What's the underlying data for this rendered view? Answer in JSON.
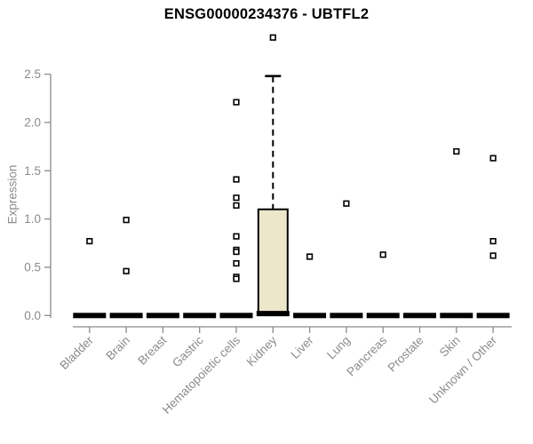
{
  "colors": {
    "box_fill": "#ece7cb",
    "box_stroke": "#000000",
    "axis": "#8b8b8b",
    "axis_text": "#8b8b8b",
    "title_text": "#000000",
    "outlier_fill": "#ffffff"
  },
  "chart_data": {
    "type": "boxplot",
    "title": "ENSG00000234376 - UBTFL2",
    "xlabel": "",
    "ylabel": "Expression",
    "ylim": [
      0,
      2.5
    ],
    "yticks": [
      "0.0",
      "0.5",
      "1.0",
      "1.5",
      "2.0",
      "2.5"
    ],
    "grid": false,
    "legend": false,
    "categories": [
      "Bladder",
      "Brain",
      "Breast",
      "Gastric",
      "Hematopoietic cells",
      "Kidney",
      "Liver",
      "Lung",
      "Pancreas",
      "Prostate",
      "Skin",
      "Unknown / Other"
    ],
    "boxes": [
      {
        "label": "Bladder",
        "median": 0,
        "q1": 0,
        "q3": 0,
        "whisker_high": 0,
        "outliers": [
          0.77
        ]
      },
      {
        "label": "Brain",
        "median": 0,
        "q1": 0,
        "q3": 0,
        "whisker_high": 0,
        "outliers": [
          0.99,
          0.46
        ]
      },
      {
        "label": "Breast",
        "median": 0,
        "q1": 0,
        "q3": 0,
        "whisker_high": 0,
        "outliers": []
      },
      {
        "label": "Gastric",
        "median": 0,
        "q1": 0,
        "q3": 0,
        "whisker_high": 0,
        "outliers": []
      },
      {
        "label": "Hematopoietic cells",
        "median": 0,
        "q1": 0,
        "q3": 0,
        "whisker_high": 0,
        "outliers": [
          2.21,
          1.41,
          1.22,
          1.14,
          0.82,
          0.68,
          0.66,
          0.54,
          0.4,
          0.38
        ]
      },
      {
        "label": "Kidney",
        "median": 0.02,
        "q1": 0.02,
        "q3": 1.1,
        "whisker_high": 2.48,
        "outliers": [
          2.88
        ]
      },
      {
        "label": "Liver",
        "median": 0,
        "q1": 0,
        "q3": 0,
        "whisker_high": 0,
        "outliers": [
          0.61
        ]
      },
      {
        "label": "Lung",
        "median": 0,
        "q1": 0,
        "q3": 0,
        "whisker_high": 0,
        "outliers": [
          1.16
        ]
      },
      {
        "label": "Pancreas",
        "median": 0,
        "q1": 0,
        "q3": 0,
        "whisker_high": 0,
        "outliers": [
          0.63
        ]
      },
      {
        "label": "Prostate",
        "median": 0,
        "q1": 0,
        "q3": 0,
        "whisker_high": 0,
        "outliers": []
      },
      {
        "label": "Skin",
        "median": 0,
        "q1": 0,
        "q3": 0,
        "whisker_high": 0,
        "outliers": [
          1.7
        ]
      },
      {
        "label": "Unknown / Other",
        "median": 0,
        "q1": 0,
        "q3": 0,
        "whisker_high": 0,
        "outliers": [
          1.63,
          0.77,
          0.62
        ]
      }
    ]
  }
}
